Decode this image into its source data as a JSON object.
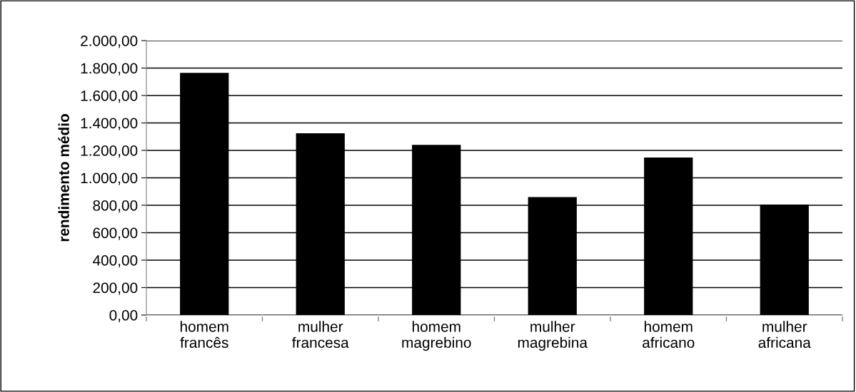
{
  "chart_data": {
    "type": "bar",
    "ylabel": "rendimento médio",
    "categories": [
      "homem\nfrancês",
      "mulher\nfrancesa",
      "homem\nmagrebino",
      "mulher\nmagrebina",
      "homem\nafricano",
      "mulher\nafricana"
    ],
    "values": [
      1765,
      1325,
      1240,
      860,
      1148,
      805
    ],
    "color": "#000000",
    "ylim": [
      0,
      2000
    ],
    "yticks": [
      {
        "value": 0,
        "label": "0,00"
      },
      {
        "value": 200,
        "label": "200,00"
      },
      {
        "value": 400,
        "label": "400,00"
      },
      {
        "value": 600,
        "label": "600,00"
      },
      {
        "value": 800,
        "label": "800,00"
      },
      {
        "value": 1000,
        "label": "1.000,00"
      },
      {
        "value": 1200,
        "label": "1.200,00"
      },
      {
        "value": 1400,
        "label": "1.400,00"
      },
      {
        "value": 1600,
        "label": "1.600,00"
      },
      {
        "value": 1800,
        "label": "1.800,00"
      },
      {
        "value": 2000,
        "label": "2.000,00"
      }
    ],
    "grid": "y"
  }
}
